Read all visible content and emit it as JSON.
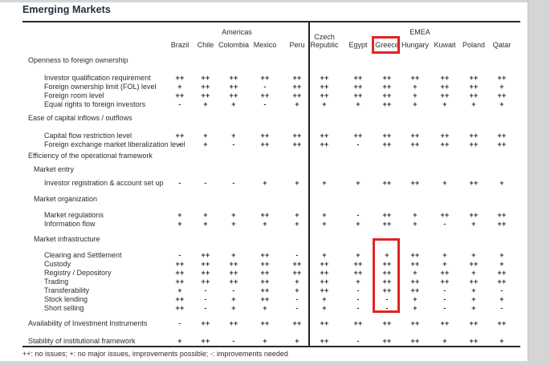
{
  "page": {
    "title": "Emerging Markets",
    "footnote": "++: no issues; +: no major issues, improvements possible; -: improvements needed"
  },
  "table": {
    "groups": [
      {
        "label": "Americas",
        "columns": [
          "Brazil",
          "Chile",
          "Colombia",
          "Mexico",
          "Peru"
        ]
      },
      {
        "label": "EMEA",
        "columns": [
          "Czech Republic",
          "Egypt",
          "Greece",
          "Hungary",
          "Kuwait",
          "Poland",
          "Qatar"
        ]
      }
    ],
    "highlight": {
      "column": "Greece",
      "color": "#e02424"
    },
    "legend": {
      "no_issues": "++",
      "no_major_issues": "+",
      "improvements_needed": "-"
    },
    "rows": [
      {
        "type": "section",
        "label": "Openness to foreign ownership"
      },
      {
        "type": "row",
        "label": "Investor qualification requirement",
        "values": [
          "++",
          "++",
          "++",
          "++",
          "++",
          "++",
          "++",
          "++",
          "++",
          "++",
          "++",
          "++"
        ]
      },
      {
        "type": "row",
        "label": "Foreign ownership limit (FOL) level",
        "values": [
          "+",
          "++",
          "++",
          "-",
          "++",
          "++",
          "++",
          "++",
          "+",
          "++",
          "++",
          "+"
        ]
      },
      {
        "type": "row",
        "label": "Foreign room level",
        "values": [
          "++",
          "++",
          "++",
          "++",
          "++",
          "++",
          "++",
          "++",
          "+",
          "++",
          "++",
          "++"
        ]
      },
      {
        "type": "row",
        "label": "Equal rights to foreign investors",
        "values": [
          "-",
          "+",
          "+",
          "-",
          "+",
          "+",
          "+",
          "++",
          "+",
          "+",
          "+",
          "+"
        ]
      },
      {
        "type": "section",
        "label": "Ease of capital inflows / outflows"
      },
      {
        "type": "row",
        "label": "Capital flow restriction level",
        "values": [
          "++",
          "+",
          "+",
          "++",
          "++",
          "++",
          "++",
          "++",
          "++",
          "++",
          "++",
          "++"
        ]
      },
      {
        "type": "row",
        "label": "Foreign exchange market liberalization level",
        "values": [
          "-",
          "+",
          "-",
          "++",
          "++",
          "++",
          "-",
          "++",
          "++",
          "++",
          "++",
          "++"
        ]
      },
      {
        "type": "section",
        "label": "Efficiency of the operational framework"
      },
      {
        "type": "subsection",
        "label": "Market entry"
      },
      {
        "type": "row",
        "label": "Investor registration & account set up",
        "values": [
          "-",
          "-",
          "-",
          "+",
          "+",
          "+",
          "+",
          "++",
          "++",
          "+",
          "++",
          "+"
        ]
      },
      {
        "type": "subsection",
        "label": "Market organization"
      },
      {
        "type": "row",
        "label": "Market regulations",
        "values": [
          "+",
          "+",
          "+",
          "++",
          "+",
          "+",
          "-",
          "++",
          "+",
          "++",
          "++",
          "++"
        ]
      },
      {
        "type": "row",
        "label": "Information flow",
        "values": [
          "+",
          "+",
          "+",
          "+",
          "+",
          "+",
          "+",
          "++",
          "+",
          "-",
          "+",
          "++"
        ]
      },
      {
        "type": "subsection",
        "label": "Market infrastructure"
      },
      {
        "type": "row",
        "label": "Clearing and Settlement",
        "values": [
          "-",
          "++",
          "+",
          "++",
          "-",
          "+",
          "+",
          "+",
          "++",
          "+",
          "+",
          "+"
        ]
      },
      {
        "type": "row",
        "label": "Custody",
        "values": [
          "++",
          "++",
          "++",
          "++",
          "++",
          "++",
          "++",
          "++",
          "++",
          "+",
          "++",
          "+"
        ]
      },
      {
        "type": "row",
        "label": "Registry / Depository",
        "values": [
          "++",
          "++",
          "++",
          "++",
          "++",
          "++",
          "++",
          "++",
          "+",
          "++",
          "+",
          "++"
        ]
      },
      {
        "type": "row",
        "label": "Trading",
        "values": [
          "++",
          "++",
          "++",
          "++",
          "+",
          "++",
          "+",
          "++",
          "++",
          "++",
          "++",
          "++"
        ]
      },
      {
        "type": "row",
        "label": "Transferability",
        "values": [
          "+",
          "-",
          "-",
          "++",
          "+",
          "++",
          "-",
          "++",
          "++",
          "-",
          "+",
          "-"
        ]
      },
      {
        "type": "row",
        "label": "Stock lending",
        "values": [
          "++",
          "-",
          "+",
          "++",
          "-",
          "+",
          "-",
          "-",
          "+",
          "-",
          "+",
          "+"
        ]
      },
      {
        "type": "row",
        "label": "Short selling",
        "values": [
          "++",
          "-",
          "+",
          "+",
          "-",
          "+",
          "-",
          "-",
          "+",
          "-",
          "+",
          "-"
        ]
      },
      {
        "type": "section-row",
        "label": "Availability of Investment Instruments",
        "values": [
          "-",
          "++",
          "++",
          "++",
          "++",
          "++",
          "++",
          "++",
          "++",
          "++",
          "++",
          "++"
        ]
      },
      {
        "type": "section-row",
        "label": "Stability of institutional framework",
        "values": [
          "+",
          "++",
          "-",
          "+",
          "+",
          "++",
          "-",
          "++",
          "++",
          "+",
          "++",
          "+"
        ]
      }
    ]
  }
}
